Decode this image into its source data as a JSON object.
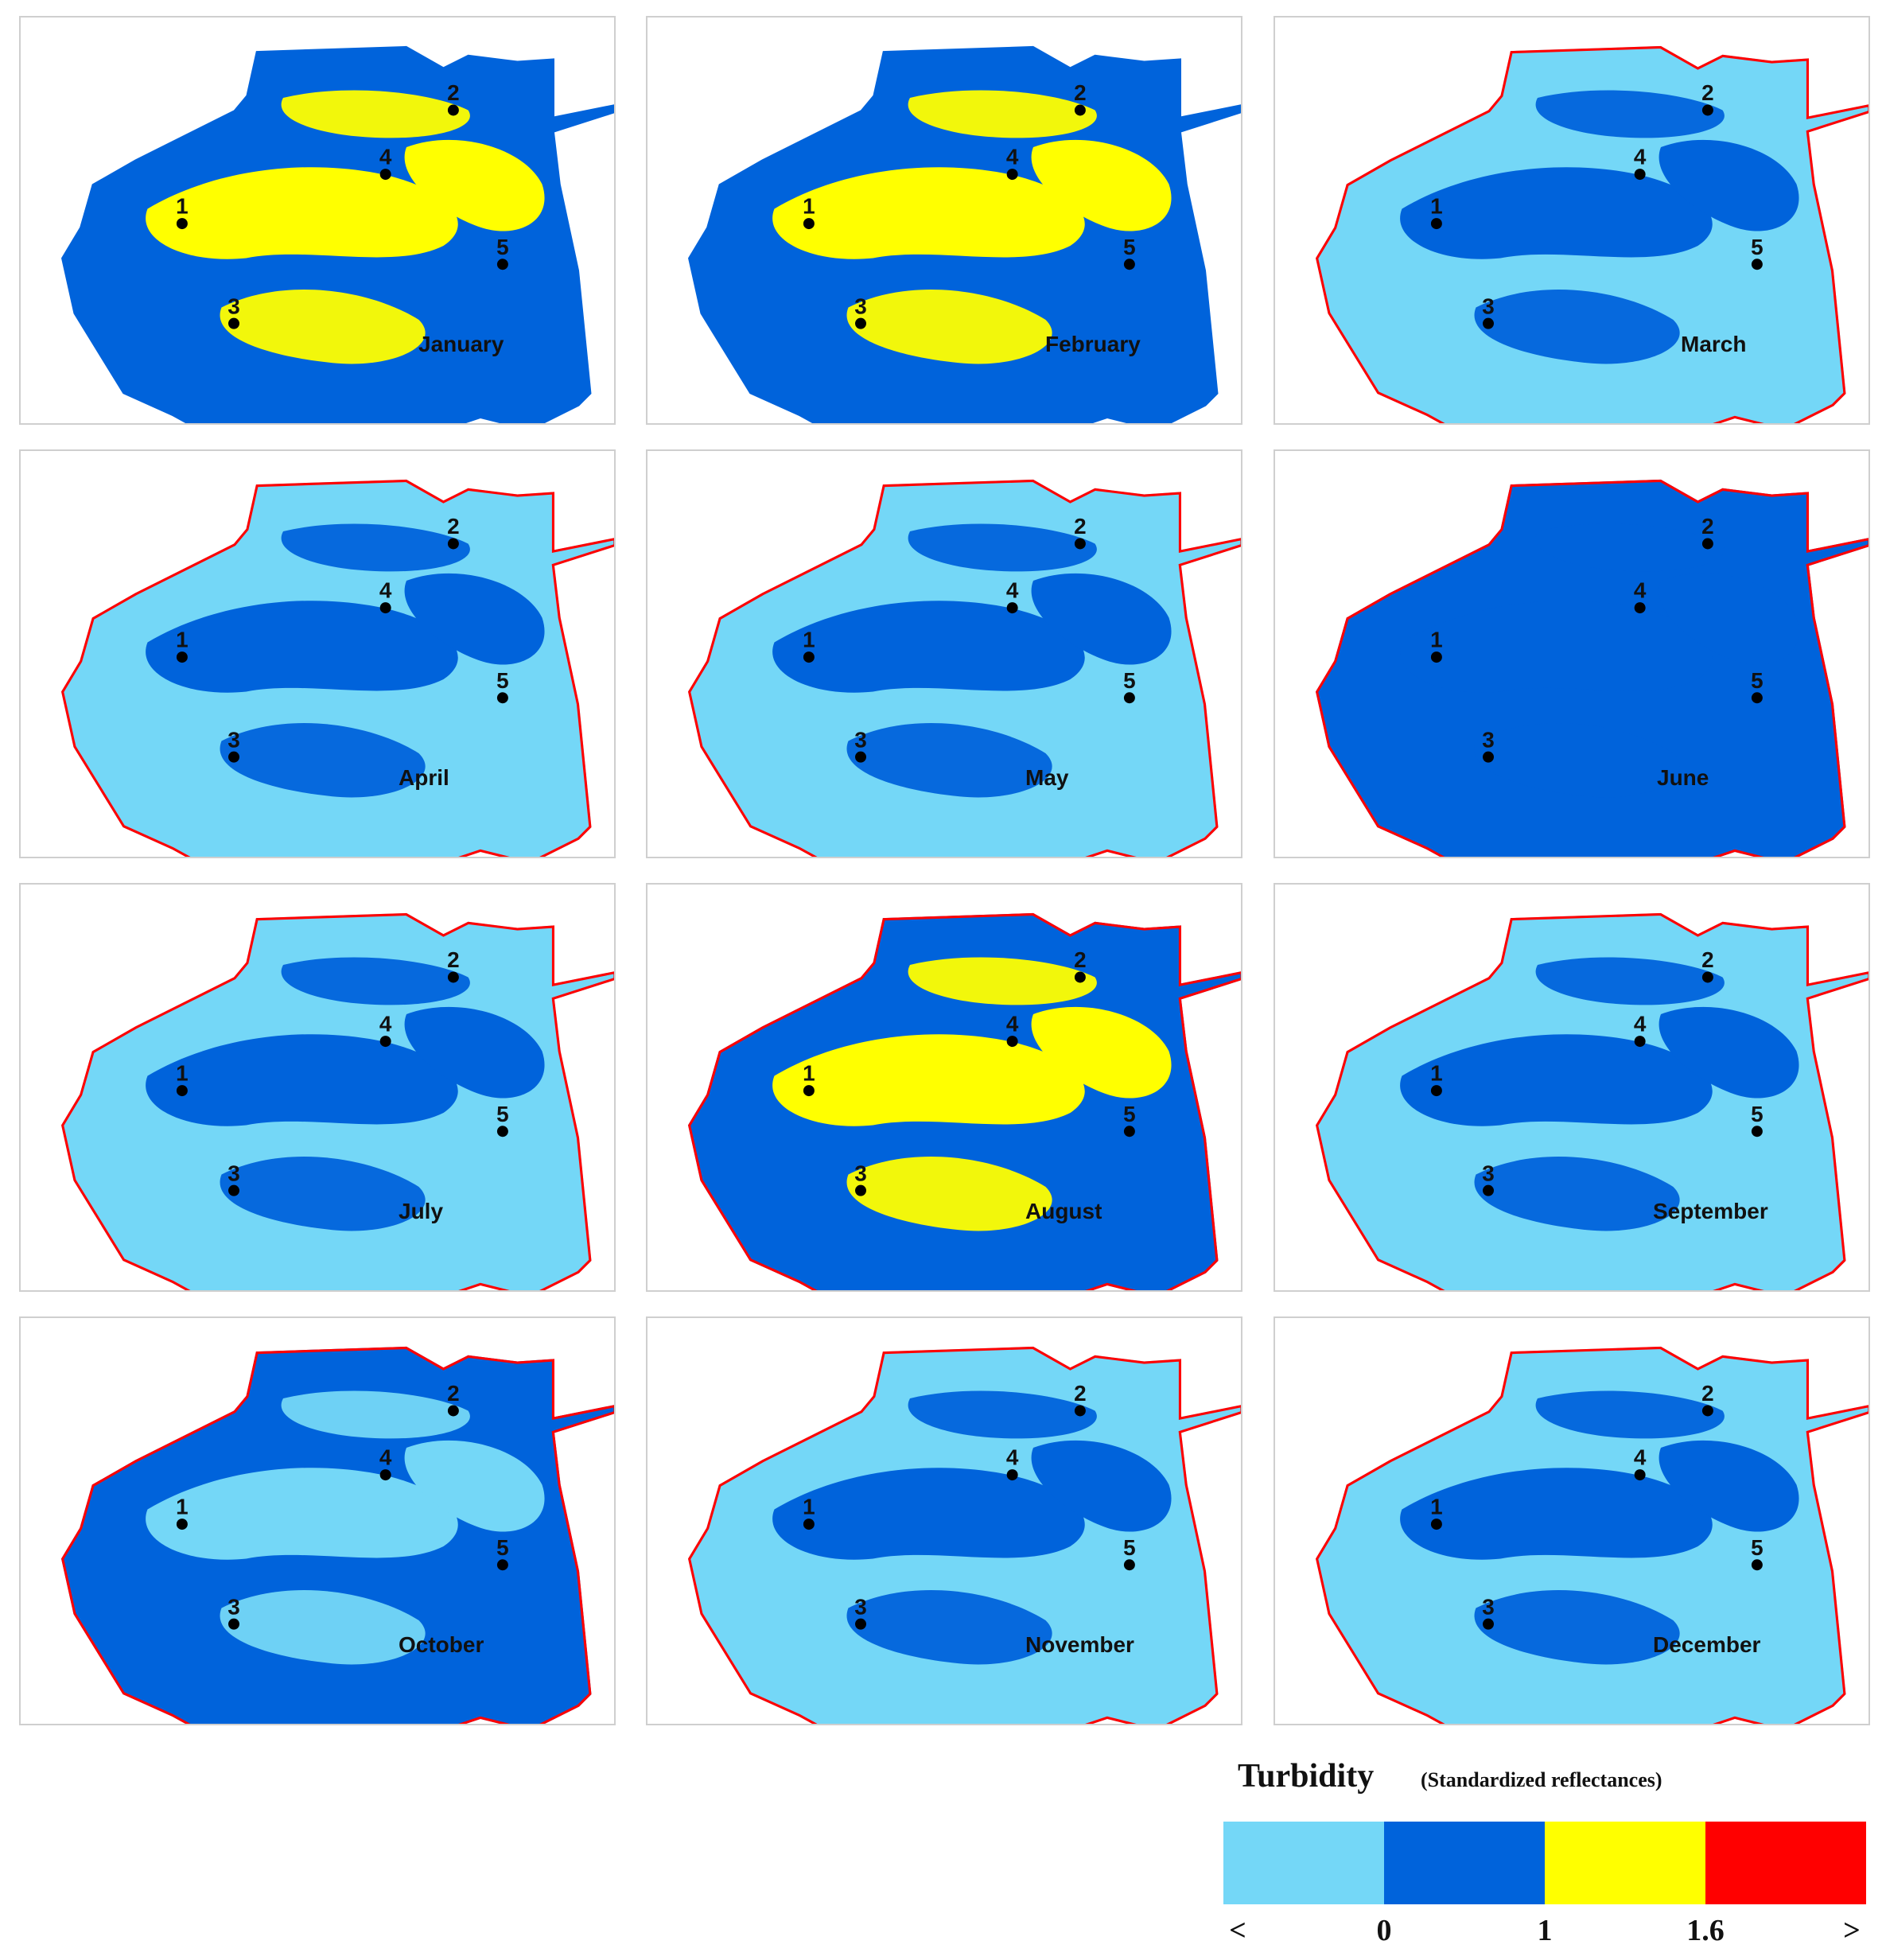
{
  "months": [
    "January",
    "February",
    "March",
    "April",
    "May",
    "June",
    "July",
    "August",
    "September",
    "October",
    "November",
    "December"
  ],
  "stations": [
    "1",
    "2",
    "3",
    "4",
    "5"
  ],
  "dominant_class": [
    1,
    1,
    0,
    0,
    0,
    1,
    0,
    1,
    0,
    1,
    0,
    0
  ],
  "secondary_class": [
    2,
    2,
    1,
    1,
    1,
    1,
    1,
    2,
    1,
    0,
    1,
    1
  ],
  "legend": {
    "title": "Turbidity",
    "subtitle": "(Standardized reflectances)",
    "ticks": [
      "<",
      "0",
      "1",
      "1.6",
      ">"
    ],
    "colors": [
      "#74d7f7",
      "#0063db",
      "#ffff00",
      "#ff0000"
    ]
  }
}
